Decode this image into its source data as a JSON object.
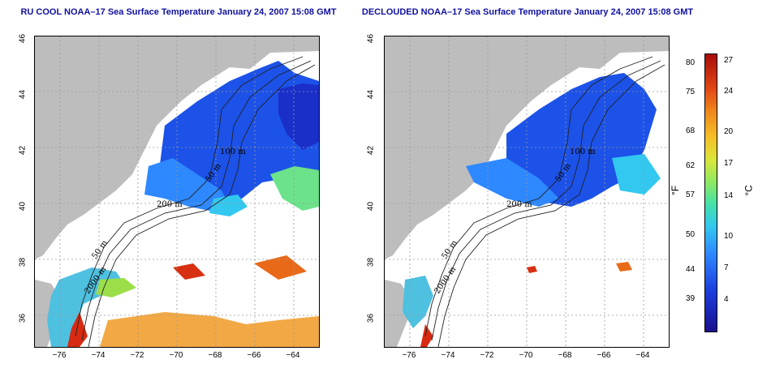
{
  "panels": [
    {
      "title": "RU COOL NOAA–17 Sea Surface Temperature January 24, 2007 15:08 GMT",
      "contour_labels": [
        "100 m",
        "50 m",
        "200 m",
        "2000 m",
        "50 m"
      ]
    },
    {
      "title": "DECLOUDED NOAA–17 Sea Surface Temperature January 24, 2007 15:08 GMT",
      "contour_labels": [
        "100 m",
        "50 m",
        "200 m",
        "2000 m",
        "50 m"
      ]
    }
  ],
  "axes": {
    "y_ticks": [
      "46",
      "44",
      "42",
      "40",
      "38",
      "36"
    ],
    "x_ticks": [
      "−76",
      "−74",
      "−72",
      "−70",
      "−68",
      "−66",
      "−64"
    ]
  },
  "colorbar": {
    "fahrenheit_ticks": [
      "80",
      "75",
      "68",
      "62",
      "57",
      "50",
      "44",
      "39"
    ],
    "celsius_ticks": [
      "27",
      "24",
      "20",
      "17",
      "14",
      "10",
      "7",
      "4"
    ],
    "fahrenheit_unit": "°F",
    "celsius_unit": "°C",
    "colors": {
      "land": "#bdbdbd",
      "cold": "#1c3fe0",
      "warm": "#e04414",
      "title": "#1010a0"
    }
  }
}
